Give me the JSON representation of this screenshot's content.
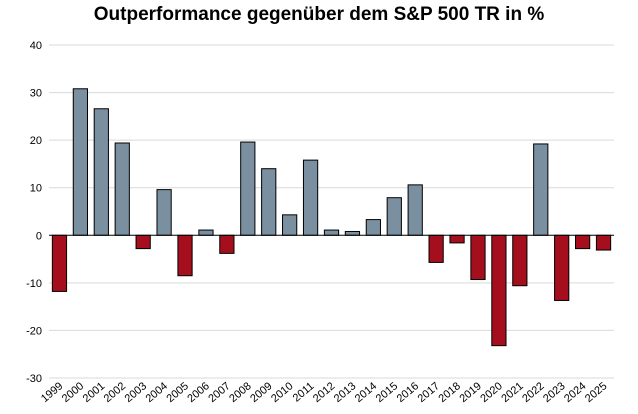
{
  "chart_data": {
    "type": "bar",
    "title": "Outperformance gegenüber dem S&P 500 TR in %",
    "xlabel": "",
    "ylabel": "",
    "ylim": [
      -30,
      40
    ],
    "yticks": [
      40,
      30,
      20,
      10,
      0,
      -10,
      -20,
      -30
    ],
    "grid": true,
    "legend": "none",
    "categories": [
      "1999",
      "2000",
      "2001",
      "2002",
      "2003",
      "2004",
      "2005",
      "2006",
      "2007",
      "2008",
      "2009",
      "2010",
      "2011",
      "2012",
      "2013",
      "2014",
      "2015",
      "2016",
      "2017",
      "2018",
      "2019",
      "2020",
      "2021",
      "2022",
      "2023",
      "2024",
      "2025"
    ],
    "values": [
      -11.8,
      30.8,
      26.6,
      19.4,
      -2.8,
      9.6,
      -8.5,
      1.1,
      -3.8,
      19.6,
      14.0,
      4.3,
      15.8,
      1.1,
      0.8,
      3.3,
      7.9,
      10.6,
      -5.7,
      -1.6,
      -9.3,
      -23.2,
      -10.6,
      19.2,
      -13.7,
      -2.8,
      -3.1
    ],
    "colors": {
      "positive": "#7a8fa0",
      "negative": "#a50f1d"
    }
  }
}
